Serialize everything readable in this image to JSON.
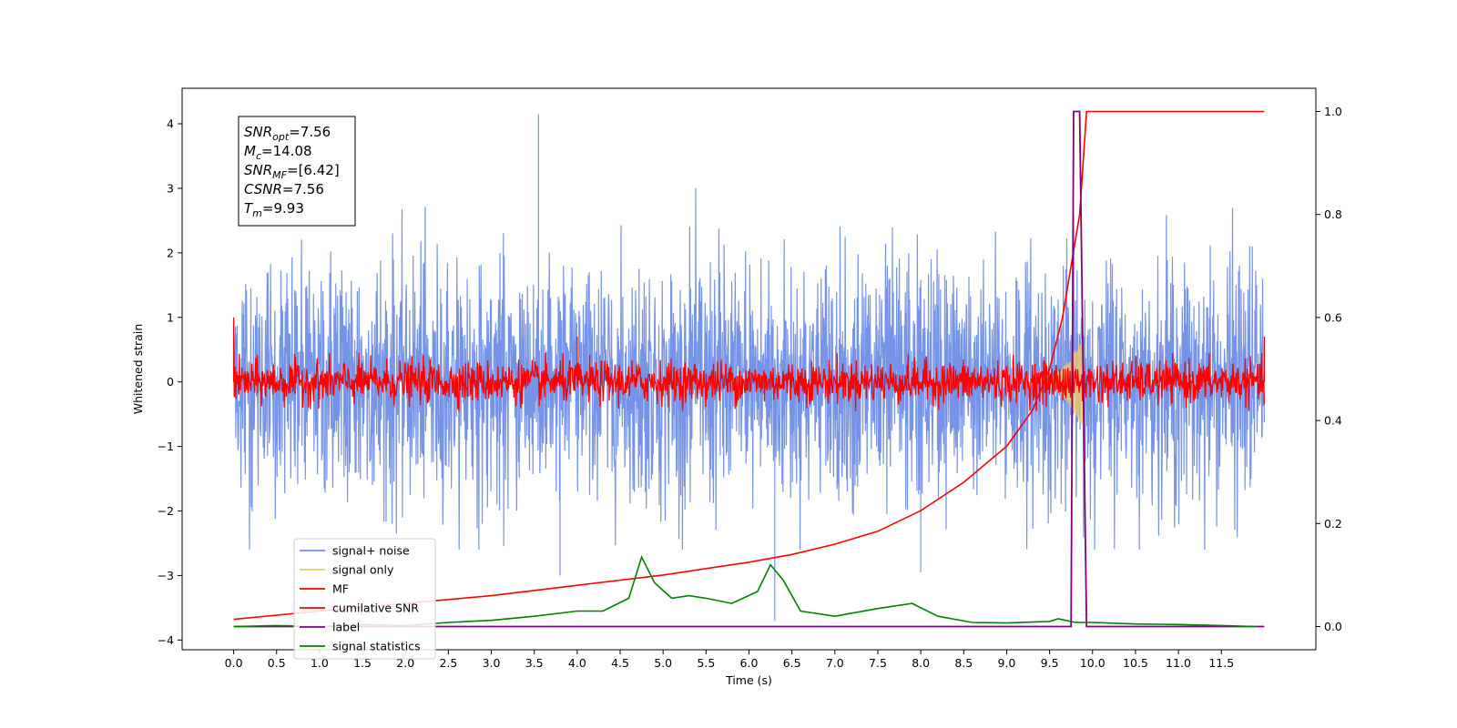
{
  "chart_data": {
    "type": "line",
    "title": "",
    "xlabel": "Time (s)",
    "ylabel": "Whitened strain",
    "xlim": [
      -0.6,
      12.6
    ],
    "ylim": [
      -4.15,
      4.55
    ],
    "y2lim": [
      -0.045,
      1.045
    ],
    "xticks": [
      "0.0",
      "0.5",
      "1.0",
      "1.5",
      "2.0",
      "2.5",
      "3.0",
      "3.5",
      "4.0",
      "4.5",
      "5.0",
      "5.5",
      "6.0",
      "6.5",
      "7.0",
      "7.5",
      "8.0",
      "8.5",
      "9.0",
      "9.5",
      "10.0",
      "10.5",
      "11.0",
      "11.5"
    ],
    "yticks": [
      "4",
      "3",
      "2",
      "1",
      "0",
      "−1",
      "−2",
      "−3",
      "−4"
    ],
    "y2ticks": [
      "1.0",
      "0.8",
      "0.6",
      "0.4",
      "0.2",
      "0.0"
    ],
    "grid": false,
    "legend_position": "bottom-left",
    "legend": [
      "signal+ noise",
      "signal only",
      "MF",
      "cumilative SNR",
      "label",
      "signal statistics"
    ],
    "colors": {
      "signal_noise": "#6f8ee6",
      "signal_only": "#f2c76b",
      "mf": "#ff0000",
      "cumulative_snr": "#ff0000",
      "label": "#800080",
      "signal_statistics": "#008000"
    },
    "info_box": [
      {
        "main": "SNR",
        "sub": "opt",
        "rest": "=7.56"
      },
      {
        "main": "M",
        "sub": "c",
        "rest": "=14.08"
      },
      {
        "main": "SNR",
        "sub": "MF",
        "rest": "=[6.42]"
      },
      {
        "main": "CSNR",
        "sub": "",
        "rest": "=7.56"
      },
      {
        "main": "T",
        "sub": "m",
        "rest": "=9.93"
      }
    ],
    "series": [
      {
        "name": "signal+ noise",
        "axis": "left",
        "x_range": [
          0.0,
          12.0
        ],
        "approx_envelope": [
          -2.8,
          4.15
        ],
        "peaks": [
          {
            "x": 3.55,
            "y": 4.15
          },
          {
            "x": 6.3,
            "y": -3.7
          },
          {
            "x": 3.8,
            "y": -3.0
          },
          {
            "x": 8.0,
            "y": -2.95
          }
        ]
      },
      {
        "name": "signal only",
        "axis": "left",
        "description_points": [
          [
            9.5,
            0.0
          ],
          [
            9.6,
            0.25
          ],
          [
            9.7,
            0.45
          ],
          [
            9.8,
            0.7
          ],
          [
            9.85,
            0.95
          ],
          [
            9.9,
            0.0
          ]
        ]
      },
      {
        "name": "MF",
        "axis": "left",
        "x_range": [
          0.0,
          12.0
        ],
        "approx_envelope": [
          -0.5,
          0.5
        ],
        "peaks": [
          {
            "x": 0.0,
            "y": 1.0
          },
          {
            "x": 4.0,
            "y": 0.7
          },
          {
            "x": 12.0,
            "y": 0.7
          }
        ]
      },
      {
        "name": "cumilative SNR",
        "axis": "right",
        "x": [
          0.0,
          1.0,
          2.0,
          3.0,
          4.0,
          5.0,
          6.0,
          6.5,
          7.0,
          7.5,
          8.0,
          8.5,
          9.0,
          9.3,
          9.5,
          9.65,
          9.75,
          9.85,
          9.93,
          10.0,
          12.0
        ],
        "values": [
          0.014,
          0.03,
          0.045,
          0.06,
          0.08,
          0.1,
          0.125,
          0.14,
          0.16,
          0.185,
          0.225,
          0.28,
          0.35,
          0.42,
          0.5,
          0.6,
          0.7,
          0.8,
          1.0,
          1.0,
          1.0
        ]
      },
      {
        "name": "label",
        "axis": "right",
        "x": [
          0.0,
          9.75,
          9.78,
          9.85,
          9.93,
          12.0
        ],
        "values": [
          0.0,
          0.0,
          1.0,
          1.0,
          0.0,
          0.0
        ]
      },
      {
        "name": "signal statistics",
        "axis": "right",
        "x": [
          0.0,
          0.5,
          1.0,
          1.5,
          2.0,
          2.5,
          3.0,
          3.5,
          4.0,
          4.3,
          4.6,
          4.75,
          4.9,
          5.1,
          5.3,
          5.5,
          5.8,
          6.1,
          6.25,
          6.4,
          6.6,
          7.0,
          7.5,
          7.9,
          8.2,
          8.6,
          9.0,
          9.5,
          9.6,
          9.8,
          10.0,
          10.5,
          11.0,
          11.5,
          11.9
        ],
        "values": [
          0.0,
          0.002,
          0.0,
          0.004,
          0.002,
          0.008,
          0.012,
          0.02,
          0.03,
          0.03,
          0.055,
          0.135,
          0.085,
          0.055,
          0.06,
          0.055,
          0.045,
          0.068,
          0.12,
          0.09,
          0.03,
          0.02,
          0.035,
          0.045,
          0.02,
          0.008,
          0.007,
          0.01,
          0.015,
          0.008,
          0.008,
          0.005,
          0.004,
          0.002,
          0.0
        ]
      }
    ]
  }
}
